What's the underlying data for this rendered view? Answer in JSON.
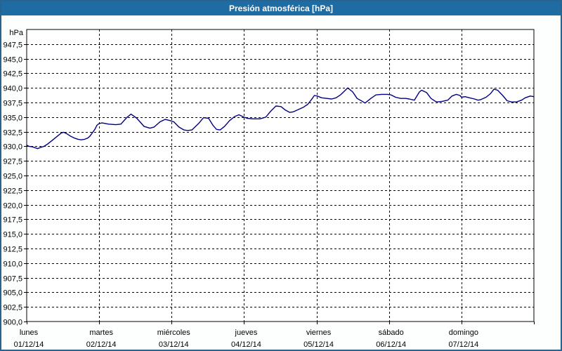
{
  "title": "Presión atmosférica [hPa]",
  "colors": {
    "titlebar_bg": "#1F6CA4",
    "titlebar_text": "#FFFFFF",
    "widget_border": "#2B638F",
    "page_bg": "#FDFFFE",
    "plot_bg": "#FFFFFF",
    "grid": "#000000",
    "axis": "#000000",
    "series_line": "#000080"
  },
  "chart_data": {
    "type": "line",
    "title": "Presión atmosférica [hPa]",
    "ylabel": "hPa",
    "xlabel": "",
    "ylim": [
      900,
      950
    ],
    "xlim_days": [
      0,
      7
    ],
    "grid": "dashed",
    "legend_position": "none",
    "yticks": [
      {
        "label": "947,5",
        "value": 947.5
      },
      {
        "label": "945,0",
        "value": 945.0
      },
      {
        "label": "942,5",
        "value": 942.5
      },
      {
        "label": "940,0",
        "value": 940.0
      },
      {
        "label": "937,5",
        "value": 937.5
      },
      {
        "label": "935,0",
        "value": 935.0
      },
      {
        "label": "932,5",
        "value": 932.5
      },
      {
        "label": "930,0",
        "value": 930.0
      },
      {
        "label": "927,5",
        "value": 927.5
      },
      {
        "label": "925,0",
        "value": 925.0
      },
      {
        "label": "922,5",
        "value": 922.5
      },
      {
        "label": "920,0",
        "value": 920.0
      },
      {
        "label": "917,5",
        "value": 917.5
      },
      {
        "label": "915,0",
        "value": 915.0
      },
      {
        "label": "912,5",
        "value": 912.5
      },
      {
        "label": "910,0",
        "value": 910.0
      },
      {
        "label": "907,5",
        "value": 907.5
      },
      {
        "label": "905,0",
        "value": 905.0
      },
      {
        "label": "902,5",
        "value": 902.5
      },
      {
        "label": "900,0",
        "value": 900.0
      }
    ],
    "x_days": [
      {
        "name": "lunes",
        "date": "01/12/14"
      },
      {
        "name": "martes",
        "date": "02/12/14"
      },
      {
        "name": "miércoles",
        "date": "03/12/14"
      },
      {
        "name": "jueves",
        "date": "04/12/14"
      },
      {
        "name": "viernes",
        "date": "05/12/14"
      },
      {
        "name": "sábado",
        "date": "06/12/14"
      },
      {
        "name": "domingo",
        "date": "07/12/14"
      }
    ],
    "series": [
      {
        "name": "Presión atmosférica",
        "color": "#000080",
        "points": [
          [
            0.0,
            930.2
          ],
          [
            0.03,
            930.0
          ],
          [
            0.08,
            929.9
          ],
          [
            0.15,
            929.6
          ],
          [
            0.19,
            929.8
          ],
          [
            0.24,
            930.0
          ],
          [
            0.29,
            930.4
          ],
          [
            0.34,
            930.9
          ],
          [
            0.39,
            931.4
          ],
          [
            0.44,
            931.9
          ],
          [
            0.48,
            932.3
          ],
          [
            0.51,
            932.4
          ],
          [
            0.56,
            932.1
          ],
          [
            0.61,
            931.7
          ],
          [
            0.66,
            931.4
          ],
          [
            0.71,
            931.2
          ],
          [
            0.75,
            931.1
          ],
          [
            0.8,
            931.2
          ],
          [
            0.84,
            931.4
          ],
          [
            0.87,
            931.7
          ],
          [
            0.9,
            932.2
          ],
          [
            0.94,
            932.9
          ],
          [
            0.97,
            933.6
          ],
          [
            1.0,
            933.9
          ],
          [
            1.04,
            934.0
          ],
          [
            1.13,
            933.8
          ],
          [
            1.23,
            933.7
          ],
          [
            1.3,
            933.8
          ],
          [
            1.38,
            934.9
          ],
          [
            1.44,
            935.5
          ],
          [
            1.52,
            934.8
          ],
          [
            1.62,
            933.4
          ],
          [
            1.7,
            933.1
          ],
          [
            1.76,
            933.3
          ],
          [
            1.84,
            934.2
          ],
          [
            1.91,
            934.6
          ],
          [
            1.98,
            934.4
          ],
          [
            2.03,
            934.2
          ],
          [
            2.1,
            933.3
          ],
          [
            2.17,
            932.8
          ],
          [
            2.22,
            932.7
          ],
          [
            2.28,
            932.8
          ],
          [
            2.38,
            934.0
          ],
          [
            2.44,
            934.9
          ],
          [
            2.51,
            934.8
          ],
          [
            2.57,
            933.6
          ],
          [
            2.62,
            932.9
          ],
          [
            2.67,
            932.8
          ],
          [
            2.73,
            933.4
          ],
          [
            2.8,
            934.4
          ],
          [
            2.87,
            935.1
          ],
          [
            2.93,
            935.4
          ],
          [
            2.98,
            935.1
          ],
          [
            3.04,
            934.8
          ],
          [
            3.12,
            934.7
          ],
          [
            3.22,
            934.7
          ],
          [
            3.3,
            935.0
          ],
          [
            3.36,
            935.9
          ],
          [
            3.44,
            936.9
          ],
          [
            3.51,
            936.8
          ],
          [
            3.57,
            936.2
          ],
          [
            3.63,
            935.8
          ],
          [
            3.68,
            935.9
          ],
          [
            3.75,
            936.3
          ],
          [
            3.82,
            936.7
          ],
          [
            3.88,
            937.2
          ],
          [
            3.93,
            938.0
          ],
          [
            3.97,
            938.7
          ],
          [
            4.01,
            938.6
          ],
          [
            4.07,
            938.3
          ],
          [
            4.14,
            938.2
          ],
          [
            4.21,
            938.1
          ],
          [
            4.27,
            938.3
          ],
          [
            4.33,
            938.8
          ],
          [
            4.38,
            939.4
          ],
          [
            4.43,
            940.0
          ],
          [
            4.5,
            939.3
          ],
          [
            4.56,
            938.2
          ],
          [
            4.63,
            937.7
          ],
          [
            4.67,
            937.4
          ],
          [
            4.75,
            938.2
          ],
          [
            4.82,
            938.8
          ],
          [
            4.9,
            938.9
          ],
          [
            4.98,
            938.9
          ],
          [
            5.03,
            938.8
          ],
          [
            5.09,
            938.4
          ],
          [
            5.16,
            938.2
          ],
          [
            5.23,
            938.2
          ],
          [
            5.28,
            938.1
          ],
          [
            5.35,
            937.9
          ],
          [
            5.42,
            939.3
          ],
          [
            5.45,
            939.6
          ],
          [
            5.52,
            939.2
          ],
          [
            5.58,
            938.2
          ],
          [
            5.64,
            937.7
          ],
          [
            5.67,
            937.6
          ],
          [
            5.74,
            937.7
          ],
          [
            5.81,
            937.9
          ],
          [
            5.87,
            938.6
          ],
          [
            5.93,
            938.9
          ],
          [
            5.98,
            938.7
          ],
          [
            6.0,
            938.4
          ],
          [
            6.05,
            938.5
          ],
          [
            6.11,
            938.3
          ],
          [
            6.18,
            938.1
          ],
          [
            6.23,
            937.9
          ],
          [
            6.27,
            938.0
          ],
          [
            6.34,
            938.4
          ],
          [
            6.4,
            939.0
          ],
          [
            6.45,
            939.8
          ],
          [
            6.5,
            939.6
          ],
          [
            6.57,
            938.7
          ],
          [
            6.63,
            937.8
          ],
          [
            6.69,
            937.6
          ],
          [
            6.76,
            937.6
          ],
          [
            6.83,
            937.9
          ],
          [
            6.88,
            938.3
          ],
          [
            6.95,
            938.6
          ],
          [
            7.0,
            938.5
          ]
        ]
      }
    ]
  }
}
